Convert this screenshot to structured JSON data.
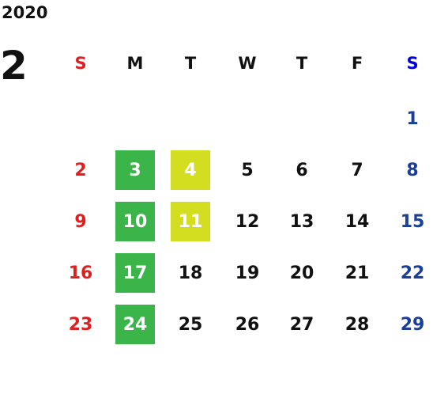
{
  "header": {
    "year": "2020",
    "month": "2"
  },
  "weekdays": [
    "S",
    "M",
    "T",
    "W",
    "T",
    "F",
    "S"
  ],
  "weeks": [
    [
      "",
      "",
      "",
      "",
      "",
      "",
      "1"
    ],
    [
      "2",
      "3",
      "4",
      "5",
      "6",
      "7",
      "8"
    ],
    [
      "9",
      "10",
      "11",
      "12",
      "13",
      "14",
      "15"
    ],
    [
      "16",
      "17",
      "18",
      "19",
      "20",
      "21",
      "22"
    ],
    [
      "23",
      "24",
      "25",
      "26",
      "27",
      "28",
      "29"
    ]
  ],
  "highlights": {
    "green": [
      "3",
      "10",
      "17",
      "24"
    ],
    "yellow": [
      "4",
      "11"
    ]
  },
  "colors": {
    "sunday": "#e02020",
    "saturday": "#1a3f9a",
    "saturday_header": "#0000e0",
    "green_highlight": "#3bb54a",
    "yellow_highlight": "#d2de1f"
  }
}
